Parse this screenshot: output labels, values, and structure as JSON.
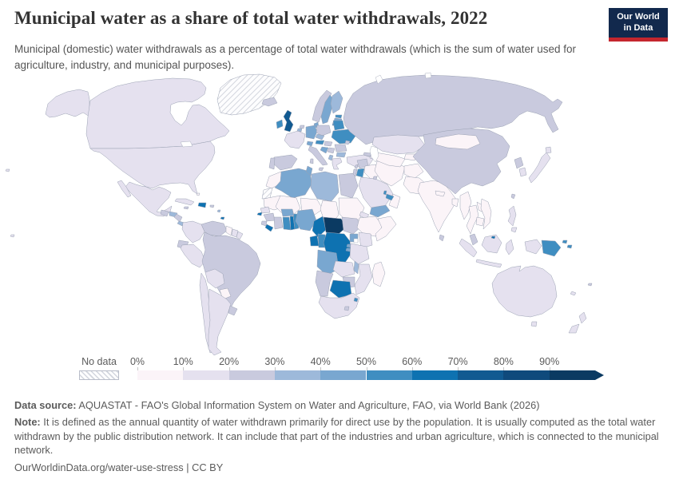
{
  "header": {
    "title": "Municipal water as a share of total water withdrawals, 2022",
    "subtitle": "Municipal (domestic) water withdrawals as a percentage of total water withdrawals (which is the sum of water used for agriculture, industry, and municipal purposes).",
    "logo": {
      "line1": "Our World",
      "line2": "in Data",
      "bg_color": "#12294d",
      "accent_color": "#c4262e"
    }
  },
  "legend": {
    "no_data_label": "No data",
    "tick_labels": [
      "0%",
      "10%",
      "20%",
      "30%",
      "40%",
      "50%",
      "60%",
      "70%",
      "80%",
      "90%"
    ],
    "bin_ranges": [
      "0-10%",
      "10-20%",
      "20-30%",
      "30-40%",
      "40-50%",
      "50-60%",
      "60-70%",
      "70-80%",
      "80-90%",
      ">90%"
    ],
    "bin_colors": [
      "#fbf4f8",
      "#e5e1ef",
      "#c9cade",
      "#9db9da",
      "#79a7d0",
      "#3f8ec1",
      "#0e72b1",
      "#115a91",
      "#0f4a7c",
      "#0b3a62"
    ]
  },
  "map": {
    "unit": "% of total water withdrawals",
    "ocean_color": "#ffffff",
    "border_color": "#9aa1b3",
    "regions": {
      "greenland": "nodata",
      "western-sahara": "nodata",
      "alaska": 1,
      "canada": 1,
      "usa": 1,
      "mexico": 1,
      "baja-california": 1,
      "guatemala": 2,
      "honduras": 3,
      "nicaragua": 2,
      "costa-rica": 3,
      "panama": 6,
      "cuba": 1,
      "jamaica": 2,
      "hispaniola": 6,
      "puerto-rico": 2,
      "bahamas": 0,
      "trinidad": 6,
      "lesser-antilles": 3,
      "hawaii": 1,
      "polynesia": 1,
      "colombia": 1,
      "venezuela": 2,
      "guyana": 0,
      "suriname": 1,
      "french-guiana": 1,
      "ecuador": 2,
      "peru": 1,
      "brazil": 2,
      "bolivia": 1,
      "paraguay": 0,
      "chile": 1,
      "argentina": 1,
      "uruguay": 2,
      "iceland": 2,
      "ireland": 5,
      "uk": 7,
      "norway": 2,
      "sweden": 4,
      "finland": 3,
      "denmark": 4,
      "estonia": 5,
      "latvia": 4,
      "lithuania": 5,
      "france": 1,
      "belgium": 3,
      "netherlands": 2,
      "germany": 4,
      "poland": 2,
      "czechia": 3,
      "austria": 5,
      "switzerland": 4,
      "hungary": 2,
      "belarus": 5,
      "ukraine": 5,
      "romania": 2,
      "moldova": 2,
      "serbia": 2,
      "bosnia-croatia": 4,
      "bulgaria": 3,
      "albania": 3,
      "greece": 1,
      "italy": 2,
      "sicily": 2,
      "sardinia": 2,
      "spain": 2,
      "portugal": 2,
      "morocco": 0,
      "algeria": 4,
      "tunisia": 4,
      "libya": 3,
      "egypt": 2,
      "mauritania": 0,
      "mali": 0,
      "niger": 0,
      "chad": 0,
      "sudan": 0,
      "eritrea": 1,
      "djibouti": 6,
      "senegal": 1,
      "guinea-bissau": 6,
      "guinea": 2,
      "sierra-leone": 2,
      "liberia": 6,
      "cote-divoire": 2,
      "ghana": 5,
      "togo": 6,
      "benin": 5,
      "burkina-faso": 4,
      "nigeria": 4,
      "cameroon": 6,
      "central-african-republic": 9,
      "south-sudan": 2,
      "ethiopia": 0,
      "somalia": 0,
      "uganda": 4,
      "kenya": 1,
      "gabon": 6,
      "congo": 5,
      "drc": 6,
      "rwanda": 4,
      "burundi": 4,
      "tanzania": 1,
      "angola": 4,
      "zambia": 1,
      "malawi": 3,
      "mozambique": 1,
      "zimbabwe": 2,
      "botswana": 6,
      "namibia": 2,
      "south-africa": 1,
      "lesotho": 2,
      "eswatini": 5,
      "madagascar": 0,
      "turkey": 1,
      "syria": 2,
      "lebanon": 2,
      "israel": 2,
      "jordan": 5,
      "iraq": 0,
      "iran": 0,
      "saudi-arabia": 1,
      "yemen": 4,
      "oman": 0,
      "uae": 5,
      "qatar": 5,
      "kuwait": 2,
      "georgia": 2,
      "armenia-azerbaijan": 1,
      "russia": 2,
      "kazakhstan": 1,
      "uzbekistan-turkmenistan": 0,
      "kyrgyzstan-tajikistan": 0,
      "afghanistan": 0,
      "pakistan": 0,
      "india": 0,
      "nepal": 0,
      "bangladesh": 0,
      "sri-lanka": 2,
      "myanmar": 0,
      "thailand": 0,
      "laos": 0,
      "vietnam": 0,
      "cambodia": 0,
      "malaysia": 2,
      "brunei": 6,
      "sumatra": 1,
      "borneo": 1,
      "java": 1,
      "sulawesi": 1,
      "west-new-guinea": 1,
      "philippines": 1,
      "mindanao": 1,
      "china": 2,
      "mongolia": 0,
      "north-korea": 2,
      "south-korea": 1,
      "japan": 1,
      "hokkaido": 1,
      "taiwan": 2,
      "australia": 1,
      "tasmania": 1,
      "new-zealand-north": 1,
      "new-zealand-south": 1,
      "papua-new-guinea": 5,
      "png-islands": 5,
      "new-caledonia": 1,
      "fiji": 2
    }
  },
  "footer": {
    "source_label": "Data source:",
    "source_text": " AQUASTAT - FAO's Global Information System on Water and Agriculture, FAO, via World Bank (2026)",
    "note_label": "Note:",
    "note_text": " It is defined as the annual quantity of water withdrawn primarily for direct use by the population. It is usually computed as the total water withdrawn by the public distribution network. It can include that part of the industries and urban agriculture, which is connected to the municipal network.",
    "citation": "OurWorldinData.org/water-use-stress | CC BY"
  }
}
